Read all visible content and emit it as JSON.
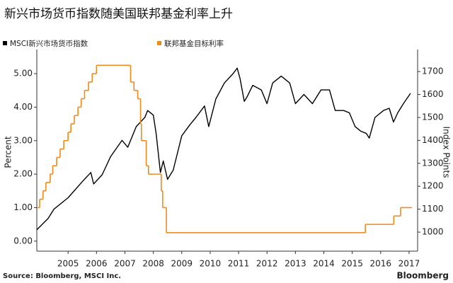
{
  "chart_data": {
    "type": "line",
    "title": "新兴市场货币指数随美国联邦基金利率上升",
    "ylabel": "Percent",
    "y2label": "Index Points",
    "source": "Source: Bloomberg, MSCI Inc.",
    "brand": "Bloomberg",
    "xlim": [
      2004.4,
      2017.8
    ],
    "xticks": [
      {
        "value": 2005.5,
        "label": "2005"
      },
      {
        "value": 2006.5,
        "label": "2006"
      },
      {
        "value": 2007.5,
        "label": "2007"
      },
      {
        "value": 2008.5,
        "label": "2008"
      },
      {
        "value": 2009.5,
        "label": "2009"
      },
      {
        "value": 2010.5,
        "label": "2010"
      },
      {
        "value": 2011.5,
        "label": "2011"
      },
      {
        "value": 2012.5,
        "label": "2012"
      },
      {
        "value": 2013.5,
        "label": "2013"
      },
      {
        "value": 2014.5,
        "label": "2014"
      },
      {
        "value": 2015.5,
        "label": "2015"
      },
      {
        "value": 2016.5,
        "label": "2016"
      },
      {
        "value": 2017.5,
        "label": "2017"
      }
    ],
    "ylim": [
      -0.3,
      5.72
    ],
    "yticks": [
      {
        "value": 0,
        "label": "0.00"
      },
      {
        "value": 1,
        "label": "1.00"
      },
      {
        "value": 2,
        "label": "2.00"
      },
      {
        "value": 3,
        "label": "3.00"
      },
      {
        "value": 4,
        "label": "4.00"
      },
      {
        "value": 5,
        "label": "5.00"
      }
    ],
    "y2lim": [
      917,
      1796
    ],
    "y2ticks": [
      1000,
      1100,
      1200,
      1300,
      1400,
      1500,
      1600,
      1700
    ],
    "series": [
      {
        "name": "MSCI新兴市场货币指数",
        "color": "#000000",
        "axis": "y2",
        "x": [
          2004.4,
          2004.8,
          2005.0,
          2005.5,
          2006.0,
          2006.3,
          2006.4,
          2006.7,
          2007.0,
          2007.4,
          2007.6,
          2007.9,
          2008.2,
          2008.3,
          2008.5,
          2008.6,
          2008.75,
          2008.85,
          2009.0,
          2009.2,
          2009.5,
          2009.8,
          2010.0,
          2010.3,
          2010.45,
          2010.7,
          2011.0,
          2011.3,
          2011.45,
          2011.55,
          2011.7,
          2011.8,
          2012.0,
          2012.3,
          2012.5,
          2012.7,
          2013.0,
          2013.3,
          2013.5,
          2013.8,
          2014.1,
          2014.4,
          2014.7,
          2014.9,
          2015.2,
          2015.4,
          2015.6,
          2015.8,
          2016.0,
          2016.1,
          2016.3,
          2016.6,
          2016.8,
          2016.95,
          2017.1,
          2017.3,
          2017.55
        ],
        "values": [
          1010,
          1060,
          1100,
          1150,
          1220,
          1260,
          1210,
          1250,
          1330,
          1400,
          1370,
          1460,
          1500,
          1530,
          1510,
          1430,
          1260,
          1310,
          1230,
          1270,
          1420,
          1470,
          1500,
          1550,
          1460,
          1580,
          1650,
          1690,
          1715,
          1670,
          1570,
          1590,
          1640,
          1620,
          1560,
          1650,
          1680,
          1650,
          1560,
          1600,
          1560,
          1620,
          1620,
          1530,
          1530,
          1520,
          1460,
          1440,
          1430,
          1410,
          1500,
          1530,
          1540,
          1480,
          1520,
          1560,
          1605
        ]
      },
      {
        "name": "联邦基金目标利率",
        "color": "#f08a1c",
        "step": true,
        "x": [
          2004.4,
          2004.5,
          2004.62,
          2004.72,
          2004.87,
          2004.96,
          2005.1,
          2005.22,
          2005.35,
          2005.5,
          2005.6,
          2005.72,
          2005.85,
          2005.96,
          2006.08,
          2006.22,
          2006.35,
          2006.5,
          2007.7,
          2007.82,
          2007.95,
          2008.05,
          2008.08,
          2008.25,
          2008.33,
          2008.78,
          2008.83,
          2008.96,
          2015.96,
          2016.96,
          2017.2,
          2017.6
        ],
        "values": [
          1.0,
          1.25,
          1.5,
          1.75,
          2.0,
          2.25,
          2.5,
          2.75,
          3.0,
          3.25,
          3.5,
          3.75,
          4.0,
          4.25,
          4.5,
          4.75,
          5.0,
          5.25,
          4.75,
          4.5,
          4.25,
          3.5,
          3.0,
          2.25,
          2.0,
          1.5,
          1.0,
          0.25,
          0.5,
          0.75,
          1.0,
          1.0
        ]
      }
    ]
  }
}
